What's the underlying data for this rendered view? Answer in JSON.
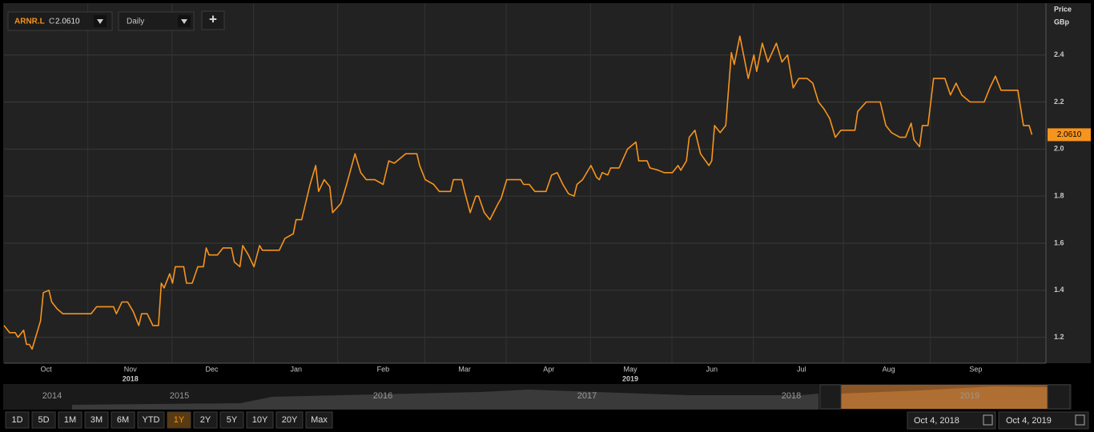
{
  "toolbar": {
    "ric": "ARNR.L",
    "close_prefix": "C",
    "close": "2.0610",
    "interval": "Daily",
    "add": "+"
  },
  "chart_data": {
    "type": "line",
    "y_axis_label": [
      "Price",
      "GBp"
    ],
    "x": [
      0,
      2,
      4,
      5,
      7,
      8,
      9,
      10,
      12,
      13,
      14,
      16,
      17,
      19,
      21,
      31,
      33,
      39,
      40,
      42,
      44,
      46,
      48,
      49,
      51,
      53,
      55,
      56,
      57,
      59,
      60,
      61,
      64,
      65,
      67,
      69,
      71,
      72,
      73,
      76,
      78,
      81,
      82,
      84,
      85,
      87,
      89,
      91,
      92,
      98,
      100,
      103,
      104,
      106,
      108,
      109,
      111,
      112,
      114,
      116,
      117,
      120,
      122,
      125,
      127,
      129,
      132,
      135,
      137,
      139,
      143,
      147,
      148,
      150,
      153,
      155,
      159,
      160,
      163,
      164,
      166,
      168,
      169,
      171,
      173,
      176,
      177,
      179,
      184,
      185,
      187,
      189,
      193,
      195,
      197,
      199,
      201,
      203,
      204,
      206,
      209,
      211,
      212,
      213,
      215,
      216,
      219,
      222,
      224,
      225,
      226,
      229,
      230,
      233,
      235,
      238,
      240,
      241,
      243,
      244,
      246,
      248,
      251,
      252,
      253,
      255,
      257,
      259,
      260,
      262,
      265,
      267,
      268,
      270,
      272,
      275,
      277,
      279,
      281,
      283,
      286,
      288,
      290,
      292,
      294,
      296,
      298,
      303,
      304,
      307,
      312,
      314,
      316,
      319,
      321,
      323,
      324,
      326,
      327,
      329,
      331,
      335,
      337,
      339,
      341,
      344,
      349,
      351,
      353,
      355,
      361,
      363,
      365,
      366
    ],
    "series": [
      {
        "name": "ARNR.L",
        "color": "#f7941d",
        "values": [
          1.25,
          1.22,
          1.22,
          1.2,
          1.23,
          1.17,
          1.17,
          1.15,
          1.23,
          1.27,
          1.39,
          1.4,
          1.35,
          1.32,
          1.3,
          1.3,
          1.33,
          1.33,
          1.3,
          1.35,
          1.35,
          1.31,
          1.25,
          1.3,
          1.3,
          1.25,
          1.25,
          1.43,
          1.41,
          1.47,
          1.43,
          1.5,
          1.5,
          1.43,
          1.43,
          1.5,
          1.5,
          1.58,
          1.55,
          1.55,
          1.58,
          1.58,
          1.52,
          1.5,
          1.59,
          1.55,
          1.5,
          1.59,
          1.57,
          1.57,
          1.62,
          1.64,
          1.7,
          1.7,
          1.8,
          1.85,
          1.93,
          1.82,
          1.87,
          1.84,
          1.73,
          1.77,
          1.85,
          1.98,
          1.9,
          1.87,
          1.87,
          1.85,
          1.95,
          1.94,
          1.98,
          1.98,
          1.93,
          1.87,
          1.85,
          1.82,
          1.82,
          1.87,
          1.87,
          1.82,
          1.73,
          1.8,
          1.8,
          1.73,
          1.7,
          1.77,
          1.79,
          1.87,
          1.87,
          1.85,
          1.85,
          1.82,
          1.82,
          1.89,
          1.9,
          1.85,
          1.81,
          1.8,
          1.85,
          1.87,
          1.93,
          1.88,
          1.87,
          1.9,
          1.89,
          1.92,
          1.92,
          2.0,
          2.02,
          2.03,
          1.95,
          1.95,
          1.92,
          1.91,
          1.9,
          1.9,
          1.93,
          1.91,
          1.95,
          2.05,
          2.08,
          1.98,
          1.93,
          1.95,
          2.1,
          2.07,
          2.1,
          2.41,
          2.36,
          2.48,
          2.3,
          2.4,
          2.33,
          2.45,
          2.37,
          2.45,
          2.37,
          2.4,
          2.26,
          2.3,
          2.3,
          2.28,
          2.2,
          2.17,
          2.13,
          2.05,
          2.08,
          2.08,
          2.16,
          2.2,
          2.2,
          2.1,
          2.07,
          2.05,
          2.05,
          2.11,
          2.04,
          2.01,
          2.1,
          2.1,
          2.3,
          2.3,
          2.23,
          2.28,
          2.23,
          2.2,
          2.2,
          2.26,
          2.31,
          2.25,
          2.25,
          2.1,
          2.1,
          2.061
        ]
      }
    ],
    "last_price": {
      "value": 2.061,
      "label": "2.0610"
    },
    "xlim": [
      0,
      371
    ],
    "xticks": [
      {
        "value": 15,
        "label": "Oct"
      },
      {
        "value": 45,
        "label": "Nov"
      },
      {
        "value": 74,
        "label": "Dec"
      },
      {
        "value": 104,
        "label": "Jan"
      },
      {
        "value": 135,
        "label": "Feb"
      },
      {
        "value": 164,
        "label": "Mar"
      },
      {
        "value": 194,
        "label": "Apr"
      },
      {
        "value": 223,
        "label": "May"
      },
      {
        "value": 252,
        "label": "Jun"
      },
      {
        "value": 284,
        "label": "Jul"
      },
      {
        "value": 315,
        "label": "Aug"
      },
      {
        "value": 346,
        "label": "Sep"
      }
    ],
    "year_labels": [
      {
        "value": 45,
        "label": "2018"
      },
      {
        "value": 223,
        "label": "2019"
      }
    ],
    "ylim": [
      1.09,
      2.62
    ],
    "yticks": [
      1.2,
      1.4,
      1.6,
      1.8,
      {
        "value": 2,
        "label": "2.0"
      },
      2.2,
      2.4
    ],
    "grid": true
  },
  "navigator": {
    "years": [
      "2014",
      "2015",
      "2016",
      "2017",
      "2018",
      "2019"
    ]
  },
  "ranges": {
    "buttons": [
      "1D",
      "5D",
      "1M",
      "3M",
      "6M",
      "YTD",
      "1Y",
      "2Y",
      "5Y",
      "10Y",
      "20Y",
      "Max"
    ],
    "active": "1Y"
  },
  "dates": {
    "from": "Oct 4, 2018",
    "to": "Oct 4, 2019"
  }
}
